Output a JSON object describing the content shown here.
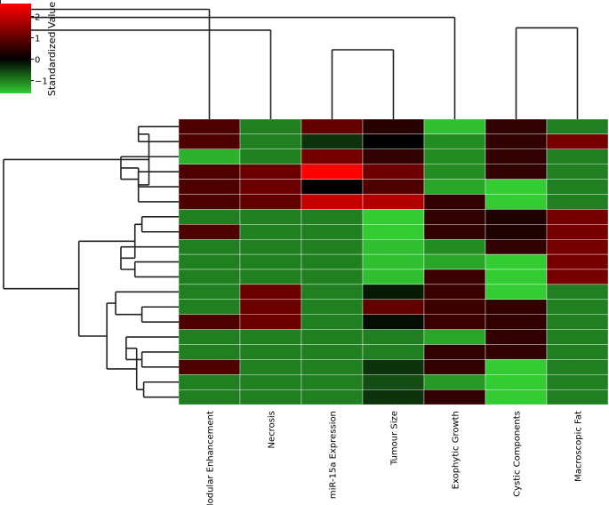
{
  "chart_data": {
    "type": "heatmap",
    "title": "",
    "columns": [
      "Nodular Enhancement",
      "Necrosis",
      "miR-15a Expression",
      "Tumour Size",
      "Exophytic Growth",
      "Cystic Components",
      "Macroscopic Fat"
    ],
    "values": [
      [
        0.8,
        -1.0,
        1.0,
        0.4,
        -1.5,
        0.5,
        -1.0
      ],
      [
        0.8,
        -1.0,
        -0.4,
        0.0,
        -1.1,
        0.5,
        1.2
      ],
      [
        -1.4,
        -1.0,
        1.2,
        0.5,
        -1.1,
        0.5,
        -1.0
      ],
      [
        0.8,
        1.1,
        2.6,
        1.1,
        -1.1,
        0.5,
        -1.0
      ],
      [
        0.8,
        1.1,
        0.0,
        0.8,
        -1.3,
        -1.6,
        -1.0
      ],
      [
        0.8,
        1.0,
        2.0,
        1.8,
        0.5,
        -1.6,
        -1.0
      ],
      [
        -1.0,
        -1.0,
        -1.0,
        -2.0,
        0.5,
        0.3,
        1.2
      ],
      [
        0.8,
        -1.0,
        -1.0,
        -2.0,
        0.5,
        0.3,
        1.2
      ],
      [
        -1.0,
        -1.0,
        -1.0,
        -1.5,
        -1.1,
        0.5,
        1.2
      ],
      [
        -1.0,
        -1.0,
        -1.0,
        -1.5,
        -1.3,
        -1.6,
        1.2
      ],
      [
        -1.0,
        -1.0,
        -1.0,
        -1.5,
        0.6,
        -1.6,
        1.2
      ],
      [
        -1.0,
        1.1,
        -1.0,
        -0.2,
        0.6,
        -1.6,
        -1.0
      ],
      [
        -1.0,
        1.1,
        -1.0,
        1.0,
        0.6,
        0.5,
        -1.0
      ],
      [
        0.8,
        1.1,
        -1.0,
        -0.1,
        0.6,
        0.5,
        -1.0
      ],
      [
        -1.0,
        -1.0,
        -1.0,
        -1.0,
        -1.3,
        0.5,
        -1.0
      ],
      [
        -1.0,
        -1.0,
        -1.0,
        -1.0,
        0.5,
        0.5,
        -1.0
      ],
      [
        0.8,
        -1.0,
        -1.0,
        -0.4,
        0.5,
        -1.6,
        -1.0
      ],
      [
        -1.0,
        -1.0,
        -1.0,
        -0.6,
        -1.2,
        -1.6,
        -1.0
      ],
      [
        -1.0,
        -1.0,
        -1.0,
        -0.4,
        0.5,
        -1.6,
        -1.0
      ]
    ],
    "colorbar": {
      "label": "Standardized Value",
      "range": [
        -1.6,
        2.6
      ],
      "ticks": [
        2,
        1,
        0,
        -1
      ],
      "tick_labels": [
        "2",
        "1",
        "0",
        "−1"
      ],
      "colors": {
        "low": "#33cc33",
        "mid": "#000000",
        "high": "#ff0000"
      }
    },
    "row_dendrogram": {
      "leaf_order": [
        0,
        1,
        2,
        3,
        4,
        5,
        6,
        7,
        8,
        9,
        10,
        11,
        12,
        13,
        14,
        15,
        16,
        17,
        18
      ],
      "merges": [
        [
          0,
          1,
          0.77
        ],
        [
          3,
          4,
          0.77
        ],
        [
          2,
          20,
          0.67
        ],
        [
          5,
          21,
          0.77
        ],
        [
          19,
          22,
          0.83
        ],
        [
          6,
          7,
          0.79
        ],
        [
          9,
          10,
          0.75
        ],
        [
          8,
          25,
          0.67
        ],
        [
          24,
          26,
          0.75
        ],
        [
          12,
          13,
          0.79
        ],
        [
          11,
          28,
          0.64
        ],
        [
          15,
          16,
          0.79
        ],
        [
          14,
          30,
          0.7
        ],
        [
          17,
          18,
          0.8
        ],
        [
          31,
          32,
          0.76
        ],
        [
          29,
          33,
          0.59
        ],
        [
          27,
          34,
          0.43
        ],
        [
          23,
          35,
          0.0
        ]
      ],
      "height_range": [
        0,
        1
      ]
    },
    "column_dendrogram": {
      "merges": [
        [
          2,
          3,
          0.4
        ],
        [
          1,
          38,
          0.23
        ],
        [
          0,
          39,
          0.05
        ],
        [
          5,
          6,
          0.21
        ],
        [
          4,
          41,
          0.12
        ],
        [
          40,
          42,
          0.0
        ]
      ],
      "height_range": [
        0,
        1
      ]
    }
  }
}
